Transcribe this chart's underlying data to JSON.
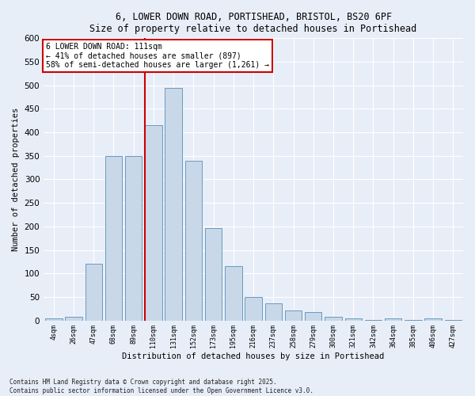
{
  "title_line1": "6, LOWER DOWN ROAD, PORTISHEAD, BRISTOL, BS20 6PF",
  "title_line2": "Size of property relative to detached houses in Portishead",
  "xlabel": "Distribution of detached houses by size in Portishead",
  "ylabel": "Number of detached properties",
  "bar_color": "#c8d8e8",
  "bar_edge_color": "#6a9abf",
  "marker_line_color": "#cc0000",
  "annotation_box_color": "#cc0000",
  "background_color": "#e8eef8",
  "grid_color": "#ffffff",
  "categories": [
    "4sqm",
    "26sqm",
    "47sqm",
    "68sqm",
    "89sqm",
    "110sqm",
    "131sqm",
    "152sqm",
    "173sqm",
    "195sqm",
    "216sqm",
    "237sqm",
    "258sqm",
    "279sqm",
    "300sqm",
    "321sqm",
    "342sqm",
    "364sqm",
    "385sqm",
    "406sqm",
    "427sqm"
  ],
  "values": [
    5,
    7,
    120,
    350,
    350,
    415,
    495,
    340,
    197,
    115,
    50,
    37,
    22,
    18,
    8,
    4,
    1,
    4,
    1,
    4,
    1
  ],
  "marker_index": 5,
  "annotation_text": "6 LOWER DOWN ROAD: 111sqm\n← 41% of detached houses are smaller (897)\n58% of semi-detached houses are larger (1,261) →",
  "footnote_line1": "Contains HM Land Registry data © Crown copyright and database right 2025.",
  "footnote_line2": "Contains public sector information licensed under the Open Government Licence v3.0.",
  "ylim_max": 600,
  "yticks": [
    0,
    50,
    100,
    150,
    200,
    250,
    300,
    350,
    400,
    450,
    500,
    550,
    600
  ]
}
